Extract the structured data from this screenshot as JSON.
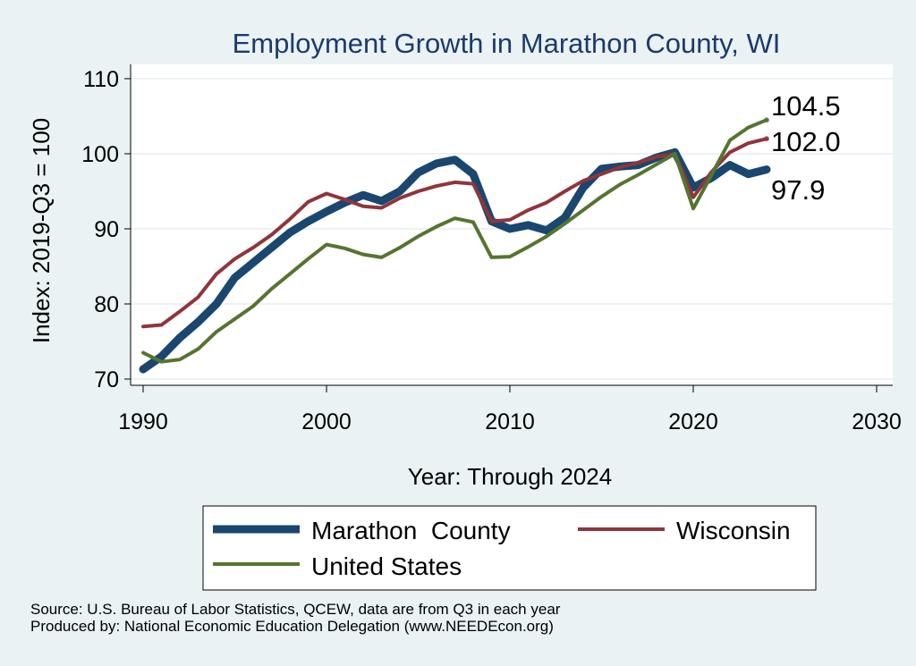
{
  "chart_data": {
    "type": "line",
    "title": "Employment Growth in Marathon County, WI",
    "xlabel": "Year: Through 2024",
    "ylabel": "Index: 2019-Q3 = 100",
    "xlim": [
      1990,
      2030
    ],
    "ylim": [
      70,
      110
    ],
    "xticks": [
      1990,
      2000,
      2010,
      2020,
      2030
    ],
    "yticks": [
      70,
      80,
      90,
      100,
      110
    ],
    "grid": true,
    "legend_position": "bottom",
    "x": [
      1990,
      1991,
      1992,
      1993,
      1994,
      1995,
      1996,
      1997,
      1998,
      1999,
      2000,
      2001,
      2002,
      2003,
      2004,
      2005,
      2006,
      2007,
      2008,
      2009,
      2010,
      2011,
      2012,
      2013,
      2014,
      2015,
      2016,
      2017,
      2018,
      2019,
      2020,
      2021,
      2022,
      2023,
      2024
    ],
    "series": [
      {
        "name": "Marathon  County",
        "color": "#1a476f",
        "values": [
          71.3,
          73.0,
          75.5,
          77.6,
          80.0,
          83.5,
          85.5,
          87.5,
          89.5,
          91.0,
          92.3,
          93.5,
          94.5,
          93.7,
          95.0,
          97.5,
          98.7,
          99.2,
          97.3,
          91.0,
          90.0,
          90.5,
          89.8,
          91.5,
          95.5,
          98.0,
          98.3,
          98.5,
          99.5,
          100.2,
          95.5,
          96.8,
          98.5,
          97.3,
          97.9
        ]
      },
      {
        "name": "Wisconsin",
        "color": "#90353b",
        "values": [
          77.0,
          77.2,
          79.0,
          80.9,
          84.0,
          86.0,
          87.5,
          89.2,
          91.3,
          93.6,
          94.7,
          93.9,
          93.0,
          92.8,
          94.1,
          95.0,
          95.7,
          96.2,
          96.0,
          91.0,
          91.2,
          92.5,
          93.5,
          95.0,
          96.4,
          97.3,
          98.2,
          98.8,
          99.6,
          100.0,
          94.2,
          97.6,
          100.2,
          101.4,
          102.0
        ]
      },
      {
        "name": "United States",
        "color": "#55752f",
        "values": [
          73.5,
          72.3,
          72.6,
          74.0,
          76.3,
          78.0,
          79.7,
          82.0,
          84.0,
          86.0,
          87.9,
          87.4,
          86.6,
          86.2,
          87.5,
          89.0,
          90.3,
          91.4,
          90.9,
          86.2,
          86.3,
          87.6,
          89.0,
          90.7,
          92.5,
          94.3,
          95.9,
          97.2,
          98.6,
          100.0,
          92.7,
          97.2,
          101.8,
          103.5,
          104.5
        ]
      }
    ],
    "end_labels": [
      "104.5",
      "102.0",
      "97.9"
    ]
  },
  "legend": {
    "marathon": "Marathon  County",
    "wisconsin": "Wisconsin",
    "us": "United States"
  },
  "source_line1": "Source: U.S. Bureau of Labor Statistics, QCEW, data are from Q3 in each year",
  "source_line2": "Produced by: National Economic Education Delegation (www.NEEDEcon.org)"
}
